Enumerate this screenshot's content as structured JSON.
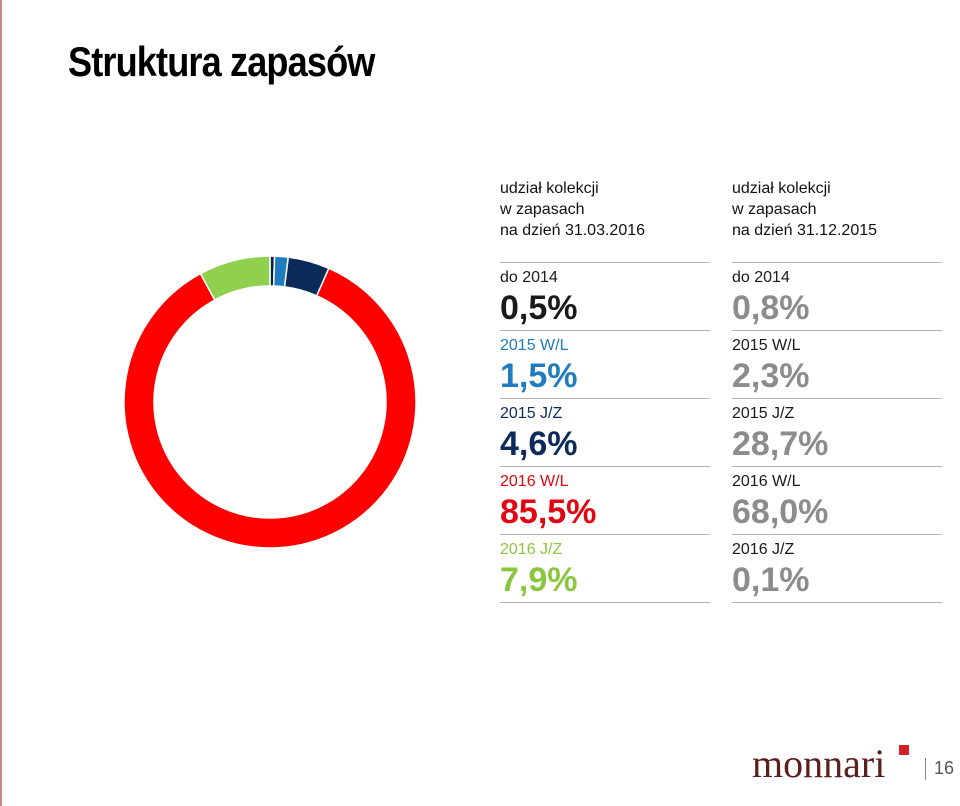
{
  "title": "Struktura zapasów",
  "columns": [
    {
      "header": [
        "udział kolekcji",
        "w zapasach",
        "na dzień 31.03.2016"
      ],
      "rows": [
        {
          "label": "do 2014",
          "value": "0,5%",
          "label_color": "#1a1a1a",
          "value_color": "#1a1a1a"
        },
        {
          "label": "2015 W/L",
          "value": "1,5%",
          "label_color": "#1f7dbf",
          "value_color": "#1f7dbf"
        },
        {
          "label": "2015 J/Z",
          "value": "4,6%",
          "label_color": "#0c2a5a",
          "value_color": "#0c2a5a"
        },
        {
          "label": "2016 W/L",
          "value": "85,5%",
          "label_color": "#e1060f",
          "value_color": "#e1060f"
        },
        {
          "label": "2016 J/Z",
          "value": "7,9%",
          "label_color": "#8cc63f",
          "value_color": "#8cc63f"
        }
      ]
    },
    {
      "header": [
        "udział kolekcji",
        "w zapasach",
        "na dzień 31.12.2015"
      ],
      "rows": [
        {
          "label": "do 2014",
          "value": "0,8%",
          "label_color": "#1a1a1a",
          "value_color": "#8c8c8c"
        },
        {
          "label": "2015 W/L",
          "value": "2,3%",
          "label_color": "#1a1a1a",
          "value_color": "#8c8c8c"
        },
        {
          "label": "2015 J/Z",
          "value": "28,7%",
          "label_color": "#1a1a1a",
          "value_color": "#8c8c8c"
        },
        {
          "label": "2016 W/L",
          "value": "68,0%",
          "label_color": "#1a1a1a",
          "value_color": "#8c8c8c"
        },
        {
          "label": "2016 J/Z",
          "value": "0,1%",
          "label_color": "#1a1a1a",
          "value_color": "#8c8c8c"
        }
      ]
    }
  ],
  "chart_data": {
    "type": "pie",
    "subtype": "donut",
    "categories": [
      "do 2014",
      "2015 W/L",
      "2015 J/Z",
      "2016 W/L",
      "2016 J/Z"
    ],
    "values": [
      0.5,
      1.5,
      4.6,
      85.5,
      7.9
    ],
    "colors": [
      "#0a1f44",
      "#1f7dbf",
      "#0c2a5a",
      "#ff0000",
      "#8fd14f"
    ],
    "start": "top",
    "direction": "clockwise"
  },
  "footer": {
    "logo_text": "monnari",
    "page_number": "16"
  }
}
